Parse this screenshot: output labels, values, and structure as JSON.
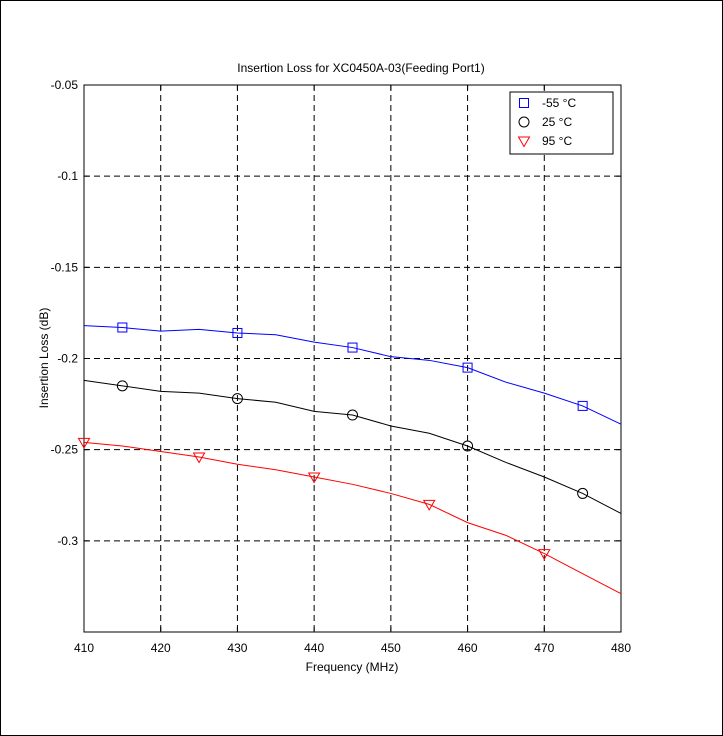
{
  "chart_data": {
    "type": "line",
    "title": "Insertion Loss for XC0450A-03(Feeding Port1)",
    "xlabel": "Frequency (MHz)",
    "ylabel": "Insertion Loss (dB)",
    "xlim": [
      410,
      480
    ],
    "ylim": [
      -0.35,
      -0.05
    ],
    "xticks": [
      410,
      420,
      430,
      440,
      450,
      460,
      470,
      480
    ],
    "xtick_labels": [
      "410",
      "420",
      "430",
      "440",
      "450",
      "460",
      "470",
      "480"
    ],
    "yticks": [
      -0.05,
      -0.1,
      -0.15,
      -0.2,
      -0.25,
      -0.3
    ],
    "ytick_labels": [
      "-0.05",
      "-0.1",
      "-0.15",
      "-0.2",
      "-0.25",
      "-0.3"
    ],
    "grid": true,
    "grid_style": "dashed",
    "legend_position": "top-right",
    "series": [
      {
        "name": "-55 °C",
        "color": "#0000ff",
        "marker": "square",
        "x": [
          410,
          415,
          420,
          425,
          430,
          435,
          440,
          445,
          450,
          455,
          460,
          465,
          470,
          475,
          480
        ],
        "y": [
          -0.182,
          -0.183,
          -0.185,
          -0.184,
          -0.186,
          -0.187,
          -0.191,
          -0.194,
          -0.199,
          -0.201,
          -0.205,
          -0.213,
          -0.219,
          -0.226,
          -0.236
        ],
        "marker_x": [
          415,
          430,
          445,
          460,
          475
        ],
        "marker_y": [
          -0.183,
          -0.186,
          -0.194,
          -0.205,
          -0.226
        ]
      },
      {
        "name": "25 °C",
        "color": "#000000",
        "marker": "circle",
        "x": [
          410,
          415,
          420,
          425,
          430,
          435,
          440,
          445,
          450,
          455,
          460,
          465,
          470,
          475,
          480
        ],
        "y": [
          -0.212,
          -0.215,
          -0.218,
          -0.219,
          -0.222,
          -0.224,
          -0.229,
          -0.231,
          -0.237,
          -0.241,
          -0.248,
          -0.257,
          -0.265,
          -0.274,
          -0.285
        ],
        "marker_x": [
          415,
          430,
          445,
          460,
          475
        ],
        "marker_y": [
          -0.215,
          -0.222,
          -0.231,
          -0.248,
          -0.274
        ]
      },
      {
        "name": "95 °C",
        "color": "#ff0000",
        "marker": "triangle-down",
        "x": [
          410,
          415,
          420,
          425,
          430,
          435,
          440,
          445,
          450,
          455,
          460,
          465,
          470,
          475,
          480
        ],
        "y": [
          -0.246,
          -0.248,
          -0.251,
          -0.254,
          -0.258,
          -0.261,
          -0.265,
          -0.269,
          -0.274,
          -0.28,
          -0.29,
          -0.297,
          -0.307,
          -0.318,
          -0.329
        ],
        "marker_x": [
          410,
          425,
          440,
          455,
          470
        ],
        "marker_y": [
          -0.246,
          -0.254,
          -0.265,
          -0.28,
          -0.307
        ]
      }
    ]
  }
}
